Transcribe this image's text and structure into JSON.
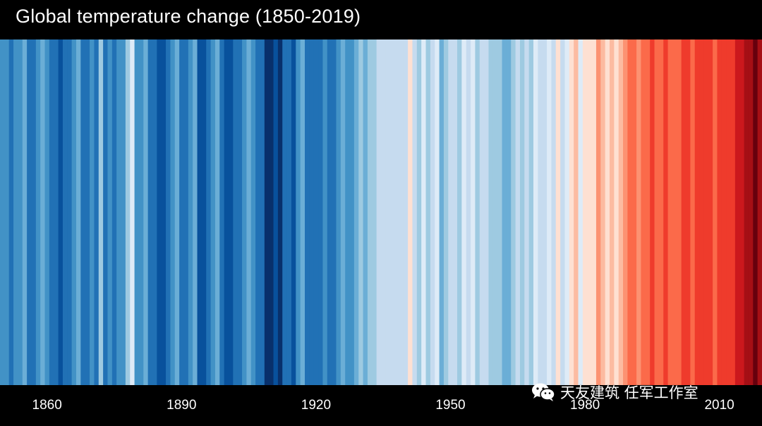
{
  "chart_data": {
    "type": "heatmap",
    "title": "Global temperature change (1850-2019)",
    "x_start": 1850,
    "x_end": 2019,
    "x_tick_labels": [
      "1860",
      "1890",
      "1920",
      "1950",
      "1980",
      "2010"
    ],
    "x_ticks": [
      1860,
      1890,
      1920,
      1950,
      1980,
      2010
    ],
    "colormap": "blue (cooler) to red (warmer)",
    "stripe_colors": [
      "#4292c6",
      "#4292c6",
      "#2171b5",
      "#4292c6",
      "#4292c6",
      "#6baed6",
      "#2171b5",
      "#2171b5",
      "#4292c6",
      "#6baed6",
      "#4292c6",
      "#2171b5",
      "#2171b5",
      "#08519c",
      "#2171b5",
      "#2171b5",
      "#4292c6",
      "#6baed6",
      "#2171b5",
      "#2171b5",
      "#4292c6",
      "#2171b5",
      "#9ecae1",
      "#2171b5",
      "#4292c6",
      "#2171b5",
      "#4292c6",
      "#4292c6",
      "#9ecae1",
      "#deebf7",
      "#4292c6",
      "#4292c6",
      "#6baed6",
      "#2171b5",
      "#2171b5",
      "#08519c",
      "#08519c",
      "#2171b5",
      "#4292c6",
      "#6baed6",
      "#2171b5",
      "#2171b5",
      "#4292c6",
      "#6baed6",
      "#08519c",
      "#08519c",
      "#2171b5",
      "#4292c6",
      "#6baed6",
      "#2171b5",
      "#08519c",
      "#08519c",
      "#2171b5",
      "#2171b5",
      "#4292c6",
      "#6baed6",
      "#4292c6",
      "#2171b5",
      "#2171b5",
      "#08306b",
      "#08306b",
      "#08519c",
      "#08306b",
      "#2171b5",
      "#2171b5",
      "#08519c",
      "#4292c6",
      "#6baed6",
      "#2171b5",
      "#2171b5",
      "#2171b5",
      "#2171b5",
      "#4292c6",
      "#2171b5",
      "#2171b5",
      "#4292c6",
      "#6baed6",
      "#4292c6",
      "#4292c6",
      "#6baed6",
      "#9ecae1",
      "#6baed6",
      "#9ecae1",
      "#9ecae1",
      "#c6dbef",
      "#c6dbef",
      "#c6dbef",
      "#c6dbef",
      "#c6dbef",
      "#c6dbef",
      "#c6dbef",
      "#fee0d2",
      "#c6dbef",
      "#9ecae1",
      "#deebf7",
      "#9ecae1",
      "#c6dbef",
      "#deebf7",
      "#6baed6",
      "#9ecae1",
      "#c6dbef",
      "#c6dbef",
      "#9ecae1",
      "#deebf7",
      "#c6dbef",
      "#deebf7",
      "#9ecae1",
      "#c6dbef",
      "#c6dbef",
      "#9ecae1",
      "#9ecae1",
      "#9ecae1",
      "#6baed6",
      "#6baed6",
      "#9ecae1",
      "#c6dbef",
      "#9ecae1",
      "#c6dbef",
      "#9ecae1",
      "#deebf7",
      "#c6dbef",
      "#c6dbef",
      "#deebf7",
      "#c6dbef",
      "#fee0d2",
      "#c6dbef",
      "#deebf7",
      "#fee0d2",
      "#fcbba1",
      "#deebf7",
      "#fee0d2",
      "#fee0d2",
      "#fee0d2",
      "#fc9272",
      "#fcbba1",
      "#fee0d2",
      "#fcbba1",
      "#fee0d2",
      "#fcbba1",
      "#fc9272",
      "#fb6a4a",
      "#fb6a4a",
      "#fc9272",
      "#fb6a4a",
      "#fb6a4a",
      "#ef3b2c",
      "#fb6a4a",
      "#fb6a4a",
      "#ef3b2c",
      "#fb6a4a",
      "#fb6a4a",
      "#fb6a4a",
      "#ef3b2c",
      "#ef3b2c",
      "#fb6a4a",
      "#ef3b2c",
      "#ef3b2c",
      "#ef3b2c",
      "#ef3b2c",
      "#fb6a4a",
      "#ef3b2c",
      "#ef3b2c",
      "#ef3b2c",
      "#ef3b2c",
      "#cb181d",
      "#cb181d",
      "#a50f15",
      "#a50f15",
      "#67000d",
      "#a50f15"
    ]
  },
  "watermark": {
    "text": "天友建筑 任军工作室"
  }
}
